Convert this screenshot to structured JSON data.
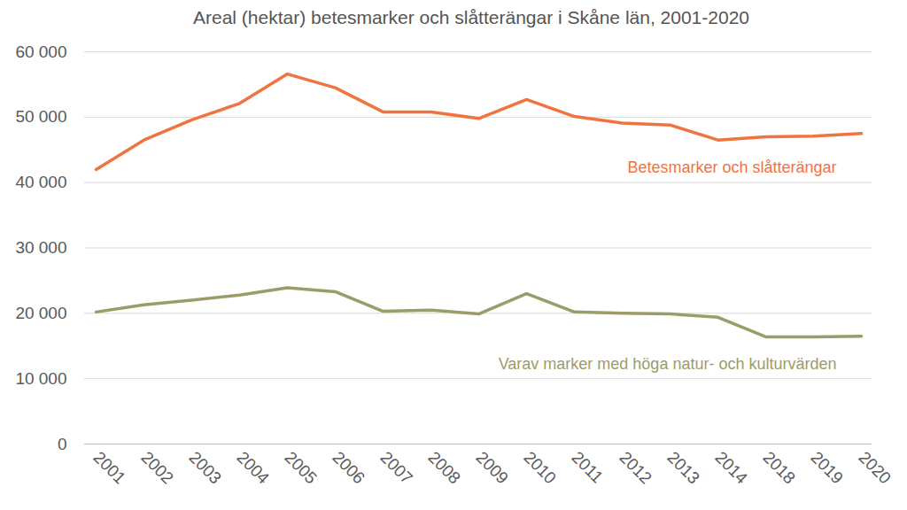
{
  "chart_data": {
    "type": "line",
    "title": "Areal (hektar) betesmarker och slåtterängar i Skåne län, 2001-2020",
    "categories": [
      "2001",
      "2002",
      "2003",
      "2004",
      "2005",
      "2006",
      "2007",
      "2008",
      "2009",
      "2010",
      "2011",
      "2012",
      "2013",
      "2014",
      "2018",
      "2019",
      "2020"
    ],
    "series": [
      {
        "name": "Betesmarker och slåtterängar",
        "color": "#F0743F",
        "values": [
          42000,
          46500,
          49600,
          52100,
          56600,
          54500,
          50800,
          50800,
          49800,
          52700,
          50100,
          49100,
          48800,
          46500,
          47000,
          47100,
          47500
        ]
      },
      {
        "name": "Varav marker med höga natur- och kulturvärden",
        "color": "#9C9C6A",
        "values": [
          20200,
          21300,
          22000,
          22800,
          23900,
          23300,
          20300,
          20500,
          19900,
          23000,
          20200,
          20000,
          19900,
          19400,
          16400,
          16400,
          16500
        ]
      }
    ],
    "ylim": [
      0,
      60000
    ],
    "yticks": [
      {
        "value": 0,
        "label": "0"
      },
      {
        "value": 10000,
        "label": "10 000"
      },
      {
        "value": 20000,
        "label": "20 000"
      },
      {
        "value": 30000,
        "label": "30 000"
      },
      {
        "value": 40000,
        "label": "40 000"
      },
      {
        "value": 50000,
        "label": "50 000"
      },
      {
        "value": 60000,
        "label": "60 000"
      }
    ],
    "grid": true
  }
}
